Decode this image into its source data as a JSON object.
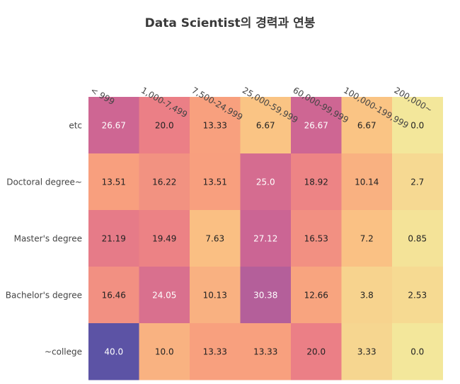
{
  "chart_data": {
    "type": "heatmap",
    "title": "Data Scientist의 경력과 연봉",
    "x_categories": [
      "< 999",
      "1,000-7,499",
      "7,500-24,999",
      "25,000-59,999",
      "60,000-99,999",
      "100,000-199,999",
      "200,000~"
    ],
    "y_categories": [
      "etc",
      "Doctoral degree~",
      "Master's degree",
      "Bachelor's degree",
      "~college"
    ],
    "values": [
      [
        26.67,
        20.0,
        13.33,
        6.67,
        26.67,
        6.67,
        0.0
      ],
      [
        13.51,
        16.22,
        13.51,
        25.0,
        18.92,
        10.14,
        2.7
      ],
      [
        21.19,
        19.49,
        7.63,
        27.12,
        16.53,
        7.2,
        0.85
      ],
      [
        16.46,
        24.05,
        10.13,
        30.38,
        12.66,
        3.8,
        2.53
      ],
      [
        40.0,
        10.0,
        13.33,
        13.33,
        20.0,
        3.33,
        0.0
      ]
    ],
    "value_labels": [
      [
        "26.67",
        "20.0",
        "13.33",
        "6.67",
        "26.67",
        "6.67",
        "0.0"
      ],
      [
        "13.51",
        "16.22",
        "13.51",
        "25.0",
        "18.92",
        "10.14",
        "2.7"
      ],
      [
        "21.19",
        "19.49",
        "7.63",
        "27.12",
        "16.53",
        "7.2",
        "0.85"
      ],
      [
        "16.46",
        "24.05",
        "10.13",
        "30.38",
        "12.66",
        "3.8",
        "2.53"
      ],
      [
        "40.0",
        "10.0",
        "13.33",
        "13.33",
        "20.0",
        "3.33",
        "0.0"
      ]
    ],
    "colorscale": "sunsetdark",
    "x_axis_position": "top"
  }
}
